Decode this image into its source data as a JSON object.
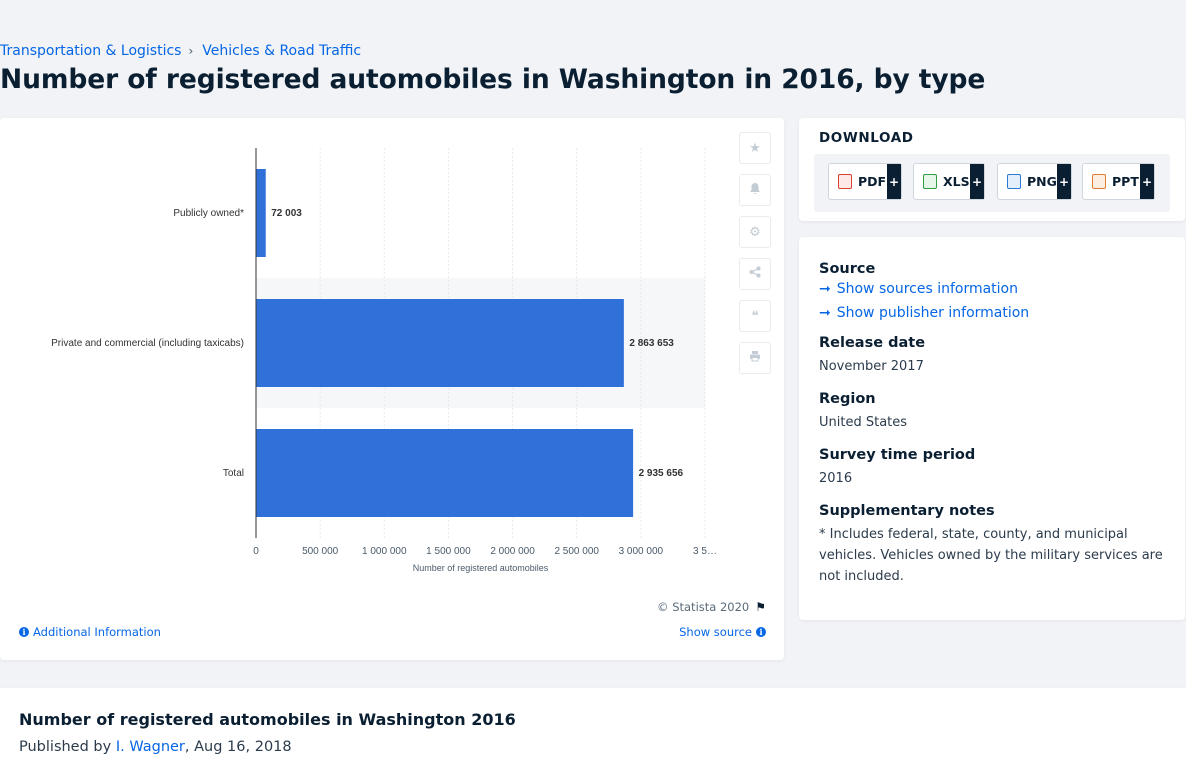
{
  "breadcrumb": {
    "items": [
      "Transportation & Logistics",
      "Vehicles & Road Traffic"
    ],
    "separator": "›"
  },
  "page_title": "Number of registered automobiles in Washington in 2016, by type",
  "chart_data": {
    "type": "bar",
    "orientation": "horizontal",
    "categories": [
      "Publicly owned*",
      "Private and commercial (including taxicabs)",
      "Total"
    ],
    "values": [
      72003,
      2863653,
      2935656
    ],
    "value_labels": [
      "72 003",
      "2 863 653",
      "2 935 656"
    ],
    "xlabel": "Number of registered automobiles",
    "ylabel": "",
    "xlim": [
      0,
      3500000
    ],
    "x_ticks": [
      0,
      500000,
      1000000,
      1500000,
      2000000,
      2500000,
      3000000,
      3500000
    ],
    "x_tick_labels": [
      "0",
      "500 000",
      "1 000 000",
      "1 500 000",
      "2 000 000",
      "2 500 000",
      "3 000 000",
      "3 5…"
    ],
    "bar_color": "#3071d9",
    "highlight_row": 1,
    "grid": true
  },
  "tools": [
    {
      "icon": "star-icon",
      "glyph": "★"
    },
    {
      "icon": "bell-icon",
      "glyph": "🔔"
    },
    {
      "icon": "gear-icon",
      "glyph": "⚙"
    },
    {
      "icon": "share-icon",
      "glyph": "⋖"
    },
    {
      "icon": "quote-icon",
      "glyph": "❝"
    },
    {
      "icon": "print-icon",
      "glyph": "⎙"
    }
  ],
  "chart_footer": {
    "copyright": "© Statista 2020",
    "additional_info": "Additional Information",
    "show_source": "Show source"
  },
  "download": {
    "title": "DOWNLOAD",
    "buttons": [
      {
        "label": "PDF",
        "color": "#d9412e"
      },
      {
        "label": "XLS",
        "color": "#2f9e44"
      },
      {
        "label": "PNG",
        "color": "#2a7bd4"
      },
      {
        "label": "PPT",
        "color": "#e27a2f"
      }
    ],
    "plus": "+"
  },
  "info": {
    "source_heading": "Source",
    "show_sources": "Show sources information",
    "show_publisher": "Show publisher information",
    "release_heading": "Release date",
    "release_value": "November 2017",
    "region_heading": "Region",
    "region_value": "United States",
    "period_heading": "Survey time period",
    "period_value": "2016",
    "notes_heading": "Supplementary notes",
    "notes_value": "* Includes federal, state, county, and municipal vehicles. Vehicles owned by the military services are not included."
  },
  "bottom": {
    "title": "Number of registered automobiles in Washington 2016",
    "published_by": "Published by",
    "author": "I. Wagner",
    "date": ", Aug 16, 2018"
  },
  "colors": {
    "accent": "#0666e5",
    "bar": "#3071d9",
    "text_dark": "#0b1f33"
  }
}
